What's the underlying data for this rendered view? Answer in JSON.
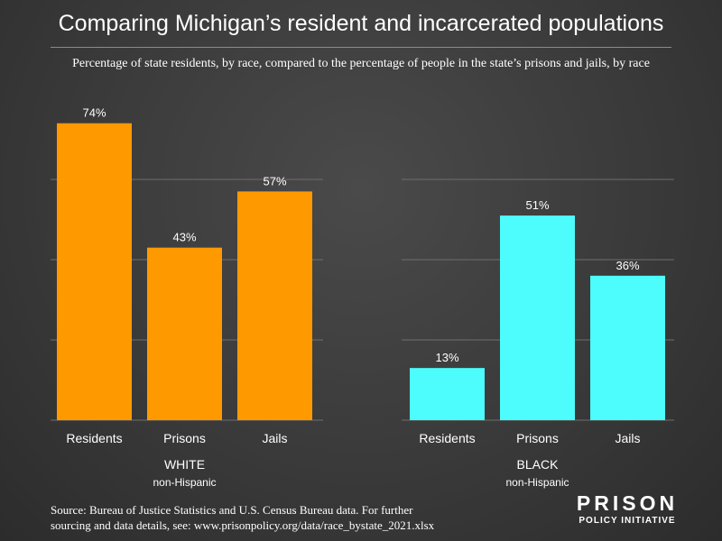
{
  "title": "Comparing Michigan’s resident and incarcerated populations",
  "subtitle": "Percentage of state residents, by race, compared to the percentage of people in the state’s prisons and jails, by race",
  "source": {
    "line1": "Source: Bureau of Justice Statistics and U.S. Census Bureau data. For further",
    "line2": "sourcing and data details, see: www.prisonpolicy.org/data/race_bystate_2021.xlsx"
  },
  "logo": {
    "main": "PRISON",
    "sub": "POLICY INITIATIVE"
  },
  "colors": {
    "white_group": "#ff9900",
    "black_group": "#4dfcfc",
    "gridline": "#6e6e6e"
  },
  "chart_data": {
    "type": "bar",
    "ylim": [
      0,
      80
    ],
    "grid": true,
    "categories": [
      "Residents",
      "Prisons",
      "Jails"
    ],
    "groups": [
      {
        "name": "WHITE",
        "sub": "non-Hispanic",
        "values": [
          74,
          43,
          57
        ],
        "labels": [
          "74%",
          "43%",
          "57%"
        ],
        "color": "#ff9900"
      },
      {
        "name": "BLACK",
        "sub": "non-Hispanic",
        "values": [
          13,
          51,
          36
        ],
        "labels": [
          "13%",
          "51%",
          "36%"
        ],
        "color": "#4dfcfc"
      }
    ]
  }
}
